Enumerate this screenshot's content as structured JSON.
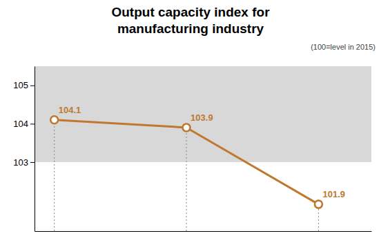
{
  "chart_data": {
    "type": "line",
    "title": "Output capacity index for\nmanufacturing industry",
    "subtitle": "(100=level in 2015)",
    "x": [
      0,
      1,
      2
    ],
    "values": [
      104.1,
      103.9,
      101.9
    ],
    "color": "#C07830",
    "marker": "circle",
    "data_labels": true,
    "xlim": [
      -0.15,
      2.4
    ],
    "ylim": [
      101.2,
      105.5
    ],
    "yticks": [
      103,
      104,
      105
    ],
    "tick_labels": "y",
    "grid": false,
    "bands": [
      {
        "from": 103.0,
        "to": 105.5,
        "color": "#D8D8D8"
      }
    ]
  }
}
